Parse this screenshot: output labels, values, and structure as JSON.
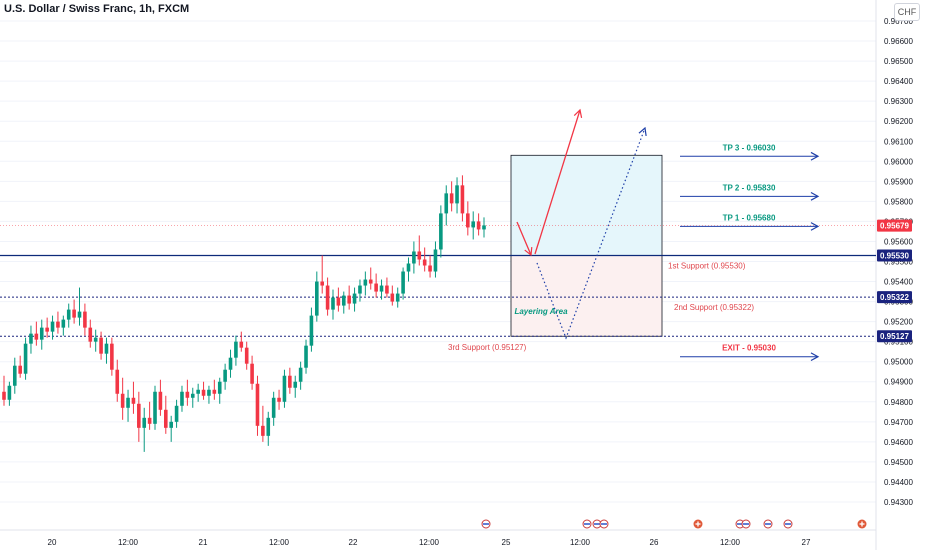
{
  "header": {
    "title": "U.S. Dollar / Swiss Franc, 1h, FXCM",
    "currency": "CHF"
  },
  "chart_data": {
    "type": "candlestick",
    "ylim": [
      0.9425,
      0.9675
    ],
    "y_ticks": [
      "0.96700",
      "0.96600",
      "0.96500",
      "0.96400",
      "0.96300",
      "0.96200",
      "0.96100",
      "0.96000",
      "0.95900",
      "0.95800",
      "0.95700",
      "0.95600",
      "0.95500",
      "0.95400",
      "0.95300",
      "0.95200",
      "0.95100",
      "0.95000",
      "0.94900",
      "0.94800",
      "0.94700",
      "0.94600",
      "0.94500",
      "0.94400",
      "0.94300"
    ],
    "x_ticks": [
      "20",
      "12:00",
      "21",
      "12:00",
      "22",
      "12:00",
      "25",
      "12:00",
      "26",
      "12:00",
      "27"
    ],
    "candles": [
      [
        0.9485,
        0.9493,
        0.9478,
        0.9481
      ],
      [
        0.9481,
        0.949,
        0.9478,
        0.9488
      ],
      [
        0.9488,
        0.9502,
        0.9484,
        0.9498
      ],
      [
        0.9498,
        0.9503,
        0.9492,
        0.9494
      ],
      [
        0.9494,
        0.9512,
        0.9491,
        0.9509
      ],
      [
        0.9509,
        0.9518,
        0.9504,
        0.9514
      ],
      [
        0.9514,
        0.952,
        0.9508,
        0.9511
      ],
      [
        0.9511,
        0.9521,
        0.9506,
        0.9517
      ],
      [
        0.9517,
        0.9522,
        0.9512,
        0.9515
      ],
      [
        0.9515,
        0.9523,
        0.9511,
        0.952
      ],
      [
        0.952,
        0.9525,
        0.9514,
        0.9517
      ],
      [
        0.9517,
        0.9523,
        0.9513,
        0.9521
      ],
      [
        0.9521,
        0.9529,
        0.9517,
        0.9526
      ],
      [
        0.9526,
        0.9531,
        0.9519,
        0.9522
      ],
      [
        0.9522,
        0.9537,
        0.9518,
        0.9525
      ],
      [
        0.9525,
        0.9529,
        0.9513,
        0.9517
      ],
      [
        0.9517,
        0.9521,
        0.9507,
        0.951
      ],
      [
        0.951,
        0.9516,
        0.9505,
        0.9512
      ],
      [
        0.9512,
        0.9515,
        0.9501,
        0.9504
      ],
      [
        0.9504,
        0.9512,
        0.9499,
        0.9509
      ],
      [
        0.9509,
        0.9512,
        0.9493,
        0.9496
      ],
      [
        0.9496,
        0.9501,
        0.948,
        0.9484
      ],
      [
        0.9484,
        0.9492,
        0.9471,
        0.9477
      ],
      [
        0.9477,
        0.9486,
        0.947,
        0.9482
      ],
      [
        0.9482,
        0.949,
        0.9474,
        0.9479
      ],
      [
        0.9479,
        0.9485,
        0.946,
        0.9467
      ],
      [
        0.9467,
        0.9477,
        0.9455,
        0.9472
      ],
      [
        0.9472,
        0.948,
        0.9466,
        0.9469
      ],
      [
        0.9469,
        0.9488,
        0.9466,
        0.9485
      ],
      [
        0.9485,
        0.9491,
        0.9473,
        0.9476
      ],
      [
        0.9476,
        0.9483,
        0.9464,
        0.9467
      ],
      [
        0.9467,
        0.9473,
        0.946,
        0.947
      ],
      [
        0.947,
        0.9481,
        0.9467,
        0.9478
      ],
      [
        0.9478,
        0.9488,
        0.9475,
        0.9485
      ],
      [
        0.9485,
        0.9491,
        0.9478,
        0.9482
      ],
      [
        0.9482,
        0.9487,
        0.9477,
        0.9484
      ],
      [
        0.9484,
        0.9489,
        0.948,
        0.9486
      ],
      [
        0.9486,
        0.949,
        0.9481,
        0.9483
      ],
      [
        0.9483,
        0.9488,
        0.9479,
        0.9486
      ],
      [
        0.9486,
        0.9491,
        0.9481,
        0.9484
      ],
      [
        0.9484,
        0.9492,
        0.9479,
        0.949
      ],
      [
        0.949,
        0.9499,
        0.9486,
        0.9496
      ],
      [
        0.9496,
        0.9506,
        0.9492,
        0.9502
      ],
      [
        0.9502,
        0.9513,
        0.9498,
        0.951
      ],
      [
        0.951,
        0.9515,
        0.9505,
        0.9507
      ],
      [
        0.9507,
        0.951,
        0.9496,
        0.9499
      ],
      [
        0.9499,
        0.9503,
        0.9486,
        0.9489
      ],
      [
        0.9489,
        0.9493,
        0.9463,
        0.9468
      ],
      [
        0.9468,
        0.9478,
        0.946,
        0.9463
      ],
      [
        0.9463,
        0.9475,
        0.9458,
        0.9472
      ],
      [
        0.9472,
        0.9485,
        0.9468,
        0.9482
      ],
      [
        0.9482,
        0.9486,
        0.9476,
        0.948
      ],
      [
        0.948,
        0.9496,
        0.9477,
        0.9493
      ],
      [
        0.9493,
        0.9497,
        0.9484,
        0.9487
      ],
      [
        0.9487,
        0.9493,
        0.9482,
        0.949
      ],
      [
        0.949,
        0.95,
        0.9486,
        0.9497
      ],
      [
        0.9497,
        0.9511,
        0.9494,
        0.9508
      ],
      [
        0.9508,
        0.9527,
        0.9505,
        0.9523
      ],
      [
        0.9523,
        0.9545,
        0.952,
        0.954
      ],
      [
        0.954,
        0.9553,
        0.9534,
        0.9538
      ],
      [
        0.9538,
        0.9542,
        0.9523,
        0.9526
      ],
      [
        0.9526,
        0.9536,
        0.9521,
        0.9532
      ],
      [
        0.9532,
        0.9537,
        0.9525,
        0.9528
      ],
      [
        0.9528,
        0.9535,
        0.9524,
        0.9533
      ],
      [
        0.9533,
        0.9538,
        0.9526,
        0.9529
      ],
      [
        0.9529,
        0.9537,
        0.9525,
        0.9534
      ],
      [
        0.9534,
        0.9541,
        0.953,
        0.9538
      ],
      [
        0.9538,
        0.9545,
        0.9533,
        0.9541
      ],
      [
        0.9541,
        0.9547,
        0.9536,
        0.9539
      ],
      [
        0.9539,
        0.9544,
        0.9532,
        0.9535
      ],
      [
        0.9535,
        0.9541,
        0.9531,
        0.9538
      ],
      [
        0.9538,
        0.9542,
        0.9532,
        0.9534
      ],
      [
        0.9534,
        0.9538,
        0.9528,
        0.953
      ],
      [
        0.953,
        0.9537,
        0.9527,
        0.9534
      ],
      [
        0.9534,
        0.9547,
        0.9531,
        0.9545
      ],
      [
        0.9545,
        0.9552,
        0.954,
        0.9549
      ],
      [
        0.9549,
        0.956,
        0.9544,
        0.9555
      ],
      [
        0.9555,
        0.9563,
        0.9548,
        0.9551
      ],
      [
        0.9551,
        0.9557,
        0.9545,
        0.9548
      ],
      [
        0.9548,
        0.9553,
        0.9542,
        0.9545
      ],
      [
        0.9545,
        0.956,
        0.9542,
        0.9556
      ],
      [
        0.9556,
        0.9578,
        0.9552,
        0.9574
      ],
      [
        0.9574,
        0.9588,
        0.9568,
        0.9584
      ],
      [
        0.9584,
        0.959,
        0.9575,
        0.9579
      ],
      [
        0.9579,
        0.9592,
        0.9574,
        0.9588
      ],
      [
        0.9588,
        0.9593,
        0.957,
        0.9574
      ],
      [
        0.9574,
        0.958,
        0.9563,
        0.9567
      ],
      [
        0.9567,
        0.9575,
        0.9561,
        0.957
      ],
      [
        0.957,
        0.9574,
        0.9563,
        0.9566
      ],
      [
        0.9566,
        0.9572,
        0.9562,
        0.9568
      ]
    ],
    "levels": [
      {
        "value": 0.9553,
        "label": "1st Support (0.95530)",
        "price_tag": "0.95530",
        "style": "solid",
        "color": "#0d2a7a"
      },
      {
        "value": 0.95322,
        "label": "2nd Support (0.95322)",
        "price_tag": "0.95322",
        "style": "dotted",
        "color": "#1a237e"
      },
      {
        "value": 0.95127,
        "label": "3rd Support (0.95127)",
        "price_tag": "0.95127",
        "style": "dotted",
        "color": "#1a237e"
      }
    ],
    "current_price": {
      "value": 0.95679,
      "price_tag": "0.95679",
      "color": "#f23645"
    },
    "targets": [
      {
        "label": "TP 3 - 0.96030",
        "value": 0.9603,
        "color": "#089981"
      },
      {
        "label": "TP 2 - 0.95830",
        "value": 0.9583,
        "color": "#089981"
      },
      {
        "label": "TP 1 - 0.95680",
        "value": 0.9568,
        "color": "#089981"
      },
      {
        "label": "EXIT - 0.95030",
        "value": 0.9503,
        "color": "#f23645"
      }
    ],
    "zone": {
      "top": 0.9603,
      "mid": 0.9553,
      "bottom": 0.95127,
      "label": "Layering Area",
      "upper_fill": "#e5f6fb",
      "lower_fill": "#fcf0f0"
    },
    "colors": {
      "up": "#089981",
      "down": "#f23645",
      "arrow_blue": "#1e3fa8",
      "grid": "#f0f3fa"
    }
  }
}
